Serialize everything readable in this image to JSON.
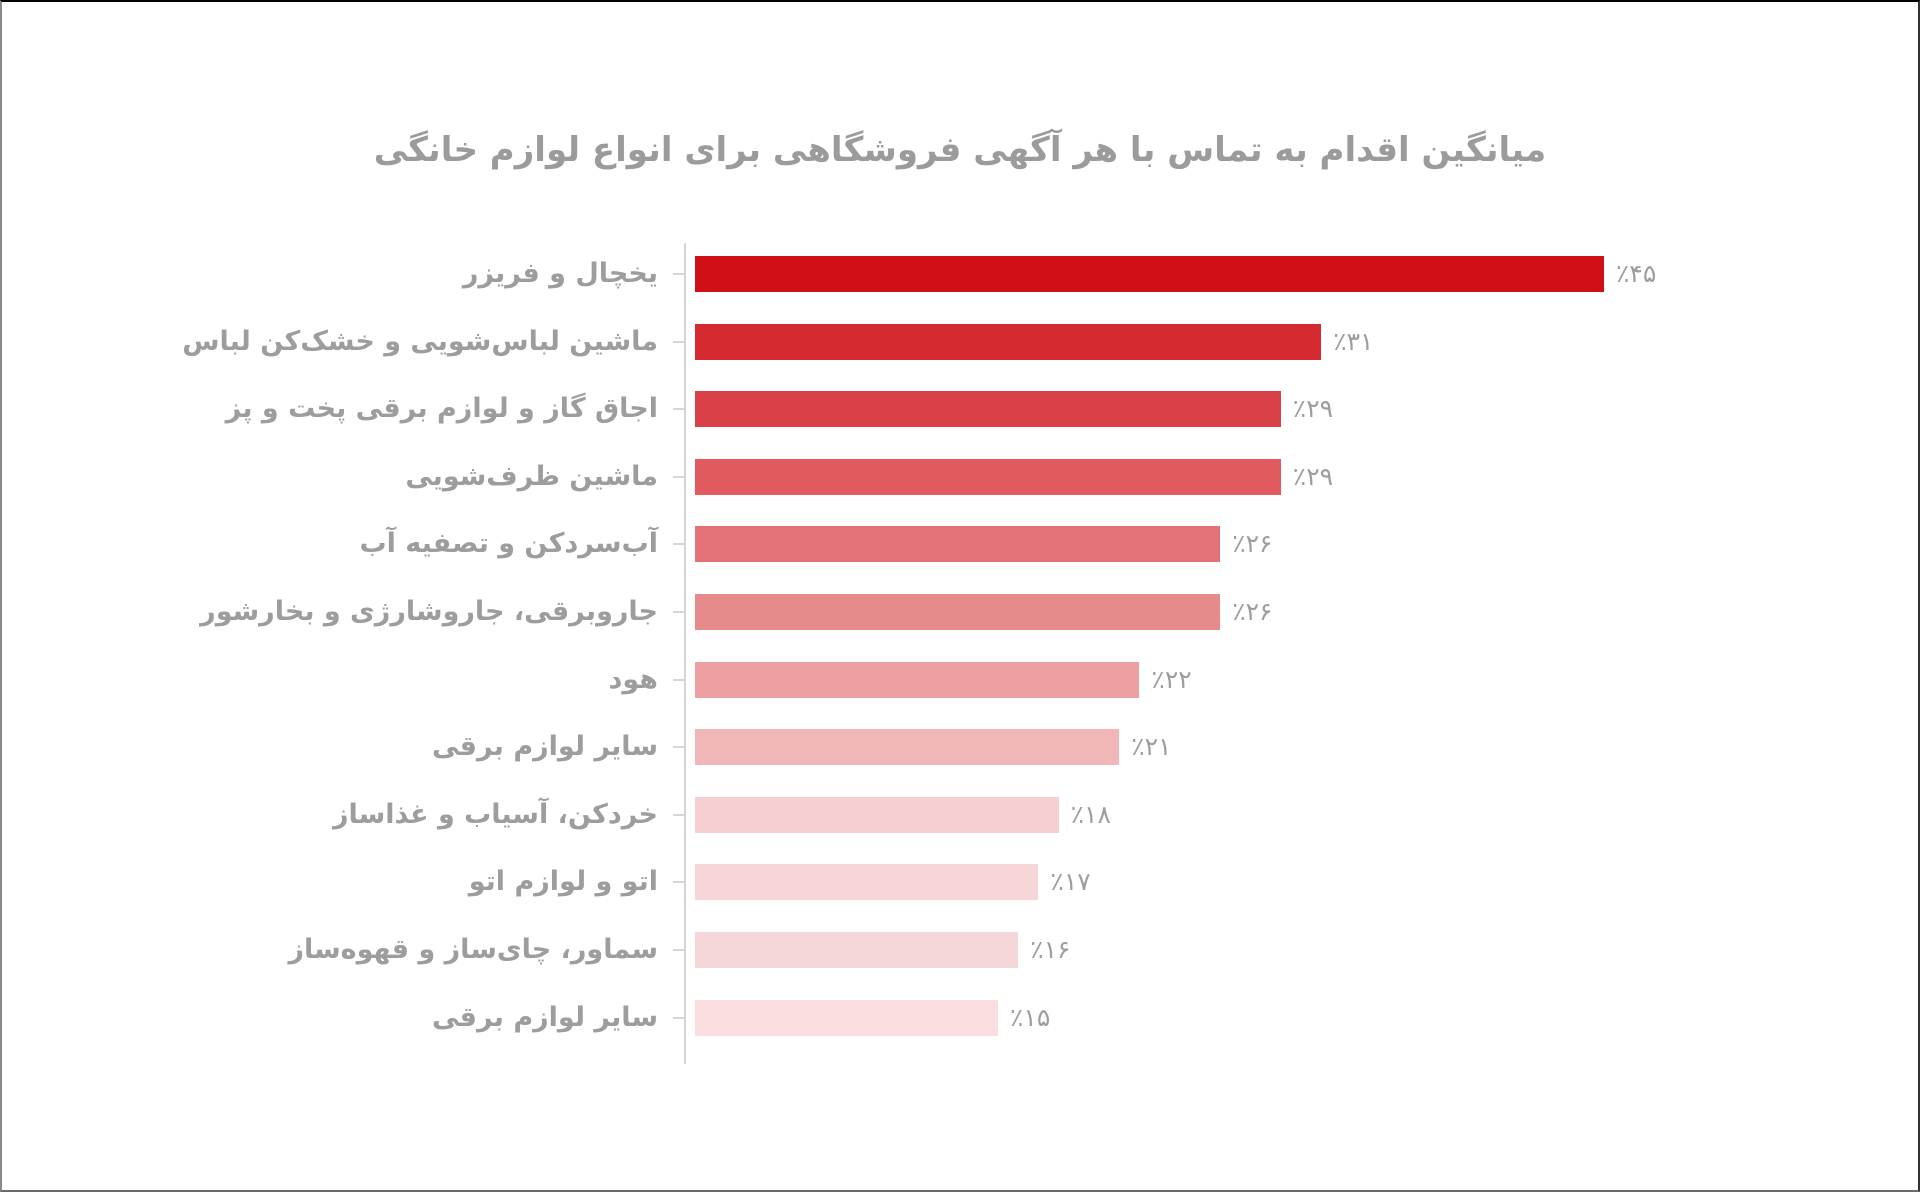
{
  "chart_data": {
    "type": "bar",
    "orientation": "horizontal",
    "title": "میانگین اقدام به تماس با هر آگهی فروشگاهی برای انواع لوازم خانگی",
    "xlabel": "",
    "ylabel": "",
    "value_format": "percent",
    "grid": false,
    "legend": null,
    "categories": [
      "یخچال و فریزر",
      "ماشین لباس‌شویی و خشک‌کن لباس",
      "اجاق گاز و لوازم برقی پخت و پز",
      "ماشین ظرف‌شویی",
      "آب‌سردکن و تصفیه آب",
      "جاروبرقی، جاروشارژی و بخارشور",
      "هود",
      "سایر لوازم برقی",
      "خردکن، آسیاب و غذاساز",
      "اتو و لوازم اتو",
      "سماور، چای‌ساز و قهوه‌ساز",
      "سایر لوازم برقی"
    ],
    "values": [
      45,
      31,
      29,
      29,
      26,
      26,
      22,
      21,
      18,
      17,
      16,
      15
    ],
    "value_labels": [
      "٪۴۵",
      "٪۳۱",
      "٪۲۹",
      "٪۲۹",
      "٪۲۶",
      "٪۲۶",
      "٪۲۲",
      "٪۲۱",
      "٪۱۸",
      "٪۱۷",
      "٪۱۶",
      "٪۱۵"
    ],
    "colors": [
      "#d01016",
      "#d42a30",
      "#da4048",
      "#e05a60",
      "#e47276",
      "#e78a8c",
      "#eca0a2",
      "#f0b6b8",
      "#f5cfd1",
      "#f6d6d8",
      "#f6d7d9",
      "#fbdfe0"
    ]
  },
  "title": "میانگین اقدام به تماس با هر آگهی فروشگاهی برای انواع لوازم خانگی"
}
